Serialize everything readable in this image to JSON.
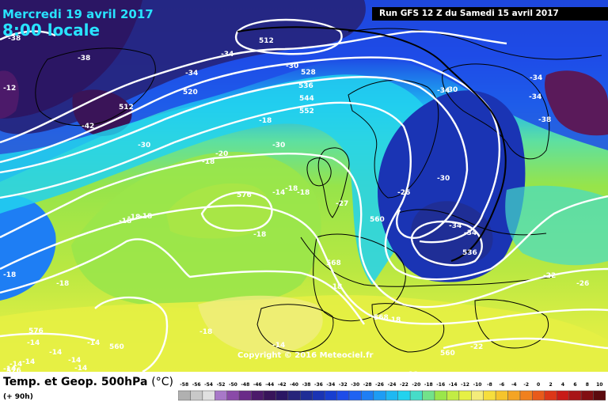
{
  "header": {
    "date": "Mercredi 19 avril 2017",
    "local_time": "8:00 locale",
    "run_info": "Run GFS 12 Z du Samedi 15 avril 2017"
  },
  "footer": {
    "title": "Temp. et Geop. 500hPa",
    "unit": "(°C)",
    "lead_time": "(+ 90h)"
  },
  "copyright": "Copyright © 2016 Meteociel.fr",
  "colors": {
    "deep_purple": "#2f1f6b",
    "blue": "#1040e8",
    "cyan": "#22d8f5",
    "green": "#8ee34a",
    "yellow": "#e9f04a",
    "isohypse": "#ffffff",
    "coast": "#000000"
  },
  "legend_scale": [
    {
      "v": "-58",
      "c": "#b0b0b0"
    },
    {
      "v": "-56",
      "c": "#c8c8c8"
    },
    {
      "v": "-54",
      "c": "#e0e0e0"
    },
    {
      "v": "-52",
      "c": "#a878c8"
    },
    {
      "v": "-50",
      "c": "#8a4aa8"
    },
    {
      "v": "-48",
      "c": "#6a2a88"
    },
    {
      "v": "-46",
      "c": "#4c1a6a"
    },
    {
      "v": "-44",
      "c": "#38145a"
    },
    {
      "v": "-42",
      "c": "#2b1664"
    },
    {
      "v": "-40",
      "c": "#26247a"
    },
    {
      "v": "-38",
      "c": "#1f2e96"
    },
    {
      "v": "-36",
      "c": "#1a34b4"
    },
    {
      "v": "-34",
      "c": "#183ed0"
    },
    {
      "v": "-32",
      "c": "#1e4ce8"
    },
    {
      "v": "-30",
      "c": "#1f62f2"
    },
    {
      "v": "-28",
      "c": "#1e7ef4"
    },
    {
      "v": "-26",
      "c": "#1d9cf4"
    },
    {
      "v": "-24",
      "c": "#1eb8f2"
    },
    {
      "v": "-22",
      "c": "#22d2ee"
    },
    {
      "v": "-20",
      "c": "#46dcc8"
    },
    {
      "v": "-18",
      "c": "#72e28a"
    },
    {
      "v": "-16",
      "c": "#9ae64a"
    },
    {
      "v": "-14",
      "c": "#c2ec44"
    },
    {
      "v": "-12",
      "c": "#e6f044"
    },
    {
      "v": "-10",
      "c": "#f4ec7a"
    },
    {
      "v": "-8",
      "c": "#f6de3c"
    },
    {
      "v": "-6",
      "c": "#f6c42c"
    },
    {
      "v": "-4",
      "c": "#f4a424"
    },
    {
      "v": "-2",
      "c": "#f0801e"
    },
    {
      "v": "0",
      "c": "#e85a1a"
    },
    {
      "v": "2",
      "c": "#dc3618"
    },
    {
      "v": "4",
      "c": "#c81a18"
    },
    {
      "v": "6",
      "c": "#a81416"
    },
    {
      "v": "8",
      "c": "#820e12"
    },
    {
      "v": "10",
      "c": "#5c0a0e"
    }
  ],
  "temp_labels": [
    "-38",
    "-38",
    "-34",
    "-34",
    "-30",
    "-30",
    "-30",
    "-42",
    "-30",
    "-12",
    "-30",
    "-34",
    "-34",
    "-34",
    "-38",
    "-18",
    "-20",
    "-18",
    "-18",
    "-18",
    "-18",
    "-18",
    "-27",
    "-26",
    "-18",
    "-18",
    "-18",
    "-14",
    "-14",
    "-14",
    "-14",
    "-14",
    "-14",
    "-14",
    "-14",
    "-18",
    "-22",
    "-22",
    "-26",
    "-18",
    "-14",
    "-14",
    "-18",
    "-18",
    "-18",
    "-14",
    "-34",
    "-34"
  ],
  "geo_labels": [
    "520",
    "512",
    "528",
    "536",
    "544",
    "552",
    "512",
    "520",
    "576",
    "560",
    "560",
    "568",
    "536",
    "568",
    "560",
    "576",
    "576"
  ]
}
